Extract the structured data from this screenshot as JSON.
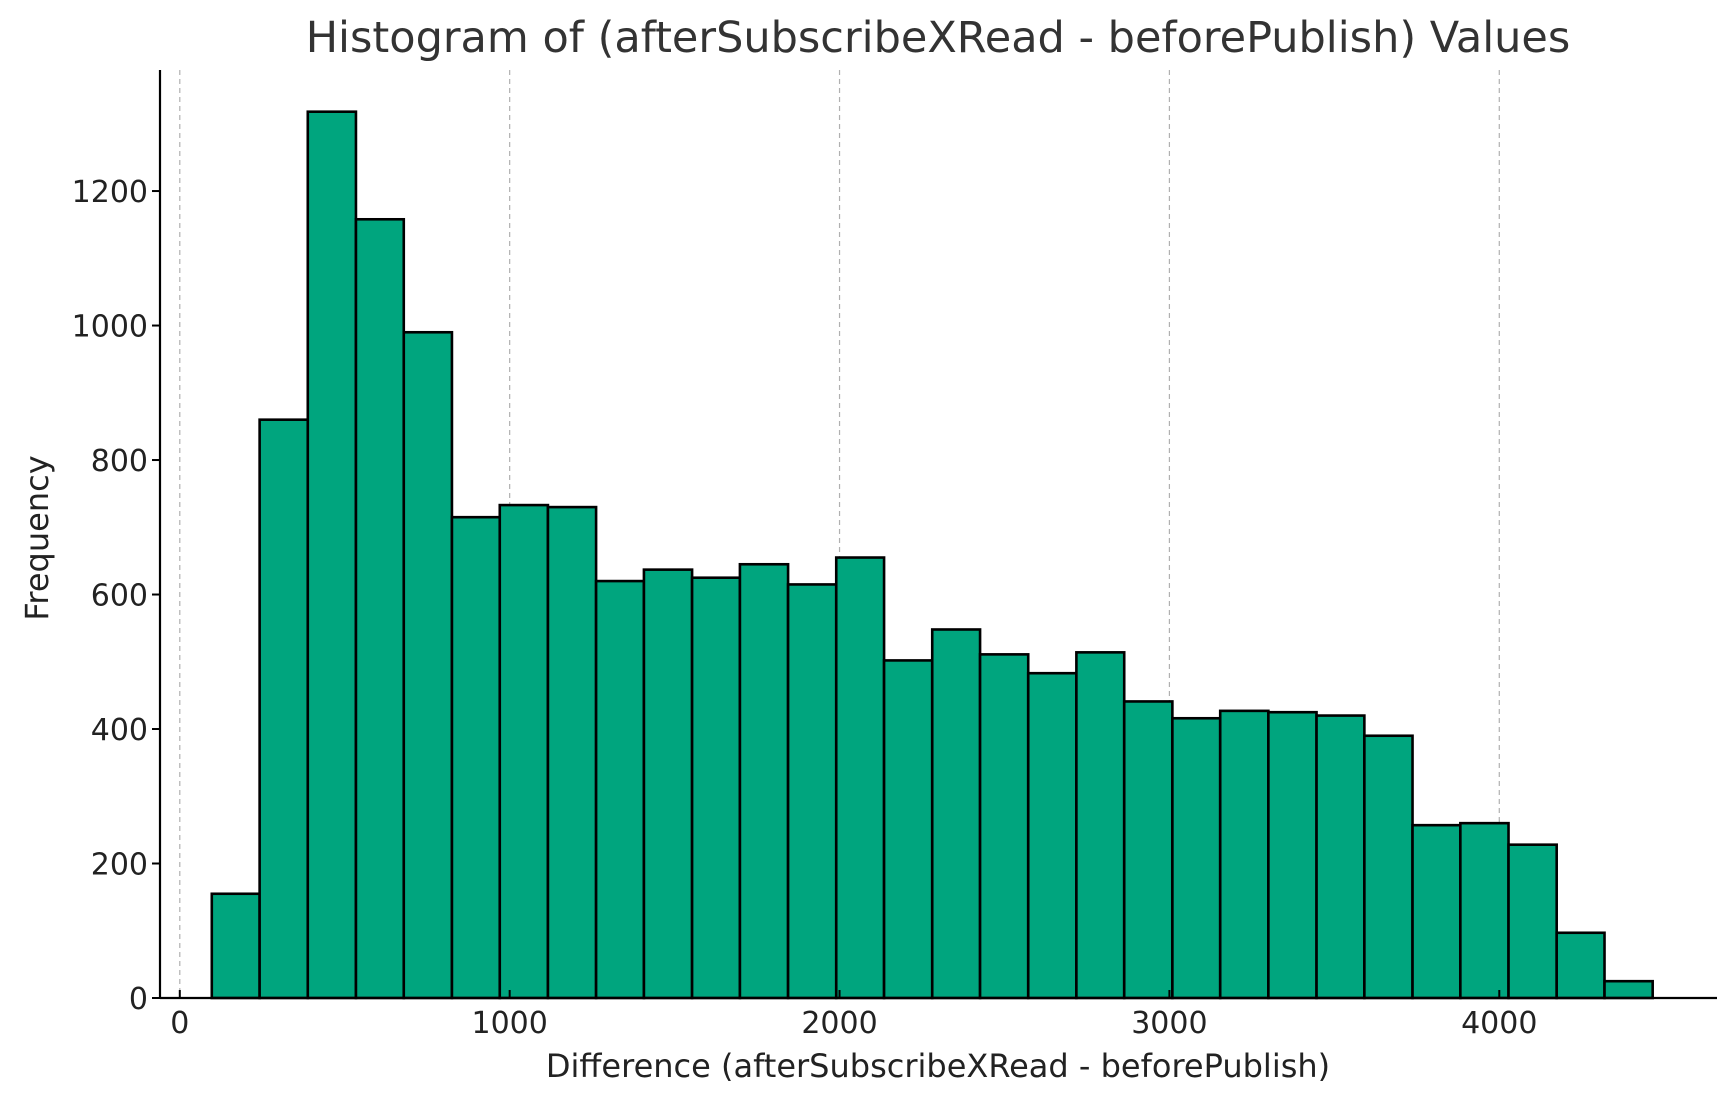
{
  "chart_data": {
    "type": "bar",
    "title": "Histogram of (afterSubscribeXRead - beforePublish) Values",
    "xlabel": "Difference (afterSubscribeXRead - beforePublish)",
    "ylabel": "Frequency",
    "xlim": [
      -60,
      4660
    ],
    "ylim": [
      0,
      1380
    ],
    "grid": "x-axis dashed",
    "bar_color": "#00a57e",
    "xticks": [
      0,
      1000,
      2000,
      3000,
      4000
    ],
    "yticks": [
      0,
      200,
      400,
      600,
      800,
      1000,
      1200
    ],
    "bins": [
      {
        "start": 97,
        "end": 242,
        "value": 155
      },
      {
        "start": 242,
        "end": 388,
        "value": 860
      },
      {
        "start": 388,
        "end": 534,
        "value": 1318
      },
      {
        "start": 534,
        "end": 679,
        "value": 1158
      },
      {
        "start": 679,
        "end": 825,
        "value": 990
      },
      {
        "start": 825,
        "end": 970,
        "value": 715
      },
      {
        "start": 970,
        "end": 1116,
        "value": 733
      },
      {
        "start": 1116,
        "end": 1262,
        "value": 730
      },
      {
        "start": 1262,
        "end": 1407,
        "value": 620
      },
      {
        "start": 1407,
        "end": 1553,
        "value": 637
      },
      {
        "start": 1553,
        "end": 1698,
        "value": 625
      },
      {
        "start": 1698,
        "end": 1844,
        "value": 645
      },
      {
        "start": 1844,
        "end": 1990,
        "value": 615
      },
      {
        "start": 1990,
        "end": 2135,
        "value": 655
      },
      {
        "start": 2135,
        "end": 2281,
        "value": 502
      },
      {
        "start": 2281,
        "end": 2426,
        "value": 548
      },
      {
        "start": 2426,
        "end": 2572,
        "value": 511
      },
      {
        "start": 2572,
        "end": 2718,
        "value": 483
      },
      {
        "start": 2718,
        "end": 2863,
        "value": 514
      },
      {
        "start": 2863,
        "end": 3009,
        "value": 441
      },
      {
        "start": 3009,
        "end": 3154,
        "value": 416
      },
      {
        "start": 3154,
        "end": 3300,
        "value": 427
      },
      {
        "start": 3300,
        "end": 3446,
        "value": 425
      },
      {
        "start": 3446,
        "end": 3591,
        "value": 420
      },
      {
        "start": 3591,
        "end": 3737,
        "value": 390
      },
      {
        "start": 3737,
        "end": 3882,
        "value": 257
      },
      {
        "start": 3882,
        "end": 4028,
        "value": 260
      },
      {
        "start": 4028,
        "end": 4174,
        "value": 228
      },
      {
        "start": 4174,
        "end": 4319,
        "value": 97
      },
      {
        "start": 4319,
        "end": 4465,
        "value": 25
      }
    ]
  }
}
